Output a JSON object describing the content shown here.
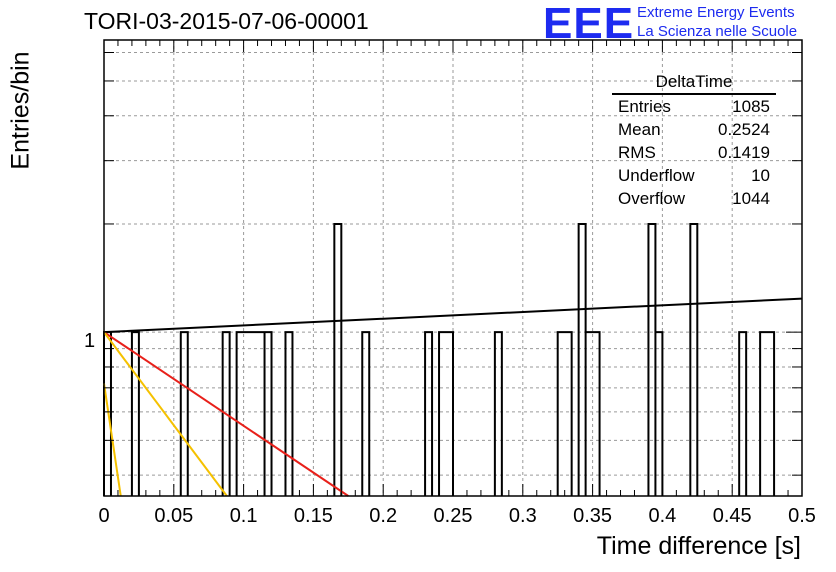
{
  "title": "TORI-03-2015-07-06-00001",
  "logo": {
    "mark": "EEE",
    "line1": "Extreme Energy Events",
    "line2": "La Scienza nelle Scuole",
    "color": "#1d2bf0"
  },
  "chart_data": {
    "type": "bar",
    "title": "TORI-03-2015-07-06-00001",
    "xlabel": "Time difference [s]",
    "ylabel": "Entries/bin",
    "xlim": [
      0,
      0.5
    ],
    "ylim_log": [
      0.35,
      6.5
    ],
    "y_scale": "log",
    "grid": true,
    "x_tick_labels": [
      "0",
      "0.05",
      "0.1",
      "0.15",
      "0.2",
      "0.25",
      "0.3",
      "0.35",
      "0.4",
      "0.45",
      "0.5"
    ],
    "y_tick_labels": [
      "1"
    ],
    "bins": [
      {
        "x0": 0.0,
        "x1": 0.005,
        "count": 1
      },
      {
        "x0": 0.02,
        "x1": 0.025,
        "count": 1
      },
      {
        "x0": 0.055,
        "x1": 0.06,
        "count": 1
      },
      {
        "x0": 0.085,
        "x1": 0.09,
        "count": 1
      },
      {
        "x0": 0.095,
        "x1": 0.115,
        "count": 1
      },
      {
        "x0": 0.115,
        "x1": 0.12,
        "count": 1
      },
      {
        "x0": 0.13,
        "x1": 0.135,
        "count": 1
      },
      {
        "x0": 0.165,
        "x1": 0.17,
        "count": 2
      },
      {
        "x0": 0.185,
        "x1": 0.19,
        "count": 1
      },
      {
        "x0": 0.23,
        "x1": 0.235,
        "count": 1
      },
      {
        "x0": 0.24,
        "x1": 0.25,
        "count": 1
      },
      {
        "x0": 0.28,
        "x1": 0.285,
        "count": 1
      },
      {
        "x0": 0.325,
        "x1": 0.335,
        "count": 1
      },
      {
        "x0": 0.34,
        "x1": 0.345,
        "count": 2
      },
      {
        "x0": 0.345,
        "x1": 0.355,
        "count": 1
      },
      {
        "x0": 0.39,
        "x1": 0.395,
        "count": 2
      },
      {
        "x0": 0.395,
        "x1": 0.4,
        "count": 1
      },
      {
        "x0": 0.42,
        "x1": 0.425,
        "count": 2
      },
      {
        "x0": 0.455,
        "x1": 0.46,
        "count": 1
      },
      {
        "x0": 0.47,
        "x1": 0.48,
        "count": 1
      }
    ],
    "fit_lines": [
      {
        "color": "#000000",
        "points": [
          [
            0.0,
            1.0
          ],
          [
            0.5,
            1.24
          ]
        ]
      },
      {
        "color": "#e8201a",
        "points": [
          [
            0.0,
            1.0
          ],
          [
            0.175,
            0.35
          ]
        ]
      },
      {
        "color": "#f5c100",
        "points": [
          [
            0.0,
            1.0
          ],
          [
            0.088,
            0.35
          ]
        ]
      },
      {
        "color": "#f5c100",
        "points": [
          [
            0.0,
            0.72
          ],
          [
            0.012,
            0.35
          ]
        ]
      }
    ],
    "stats": {
      "name": "DeltaTime",
      "rows": [
        {
          "label": "Entries",
          "value": "1085"
        },
        {
          "label": "Mean",
          "value": "0.2524"
        },
        {
          "label": "RMS",
          "value": "0.1419"
        },
        {
          "label": "Underflow",
          "value": "10"
        },
        {
          "label": "Overflow",
          "value": "1044"
        }
      ]
    }
  }
}
